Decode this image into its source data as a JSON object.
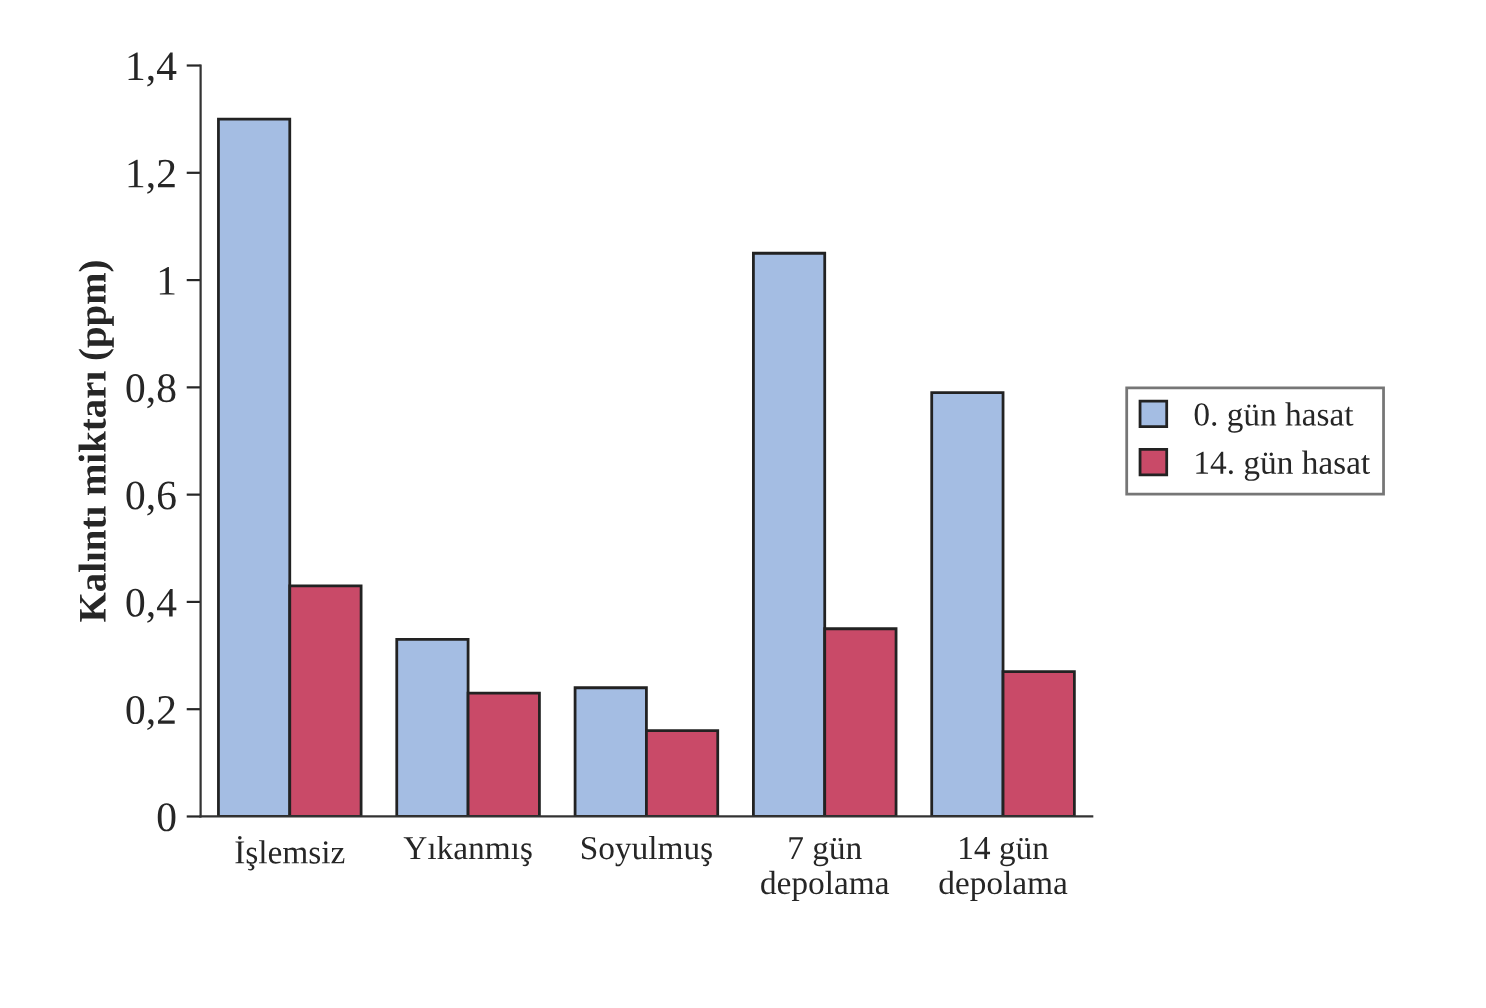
{
  "chart_data": {
    "type": "bar",
    "ylabel": "Kalıntı miktarı (ppm)",
    "categories": [
      "İşlemsiz",
      "Yıkanmış",
      "Soyulmuş",
      "7 gün\ndepolama",
      "14 gün\ndepolama"
    ],
    "series": [
      {
        "name": "0. gün hasat",
        "color": "#a4bde3",
        "values": [
          1.3,
          0.33,
          0.24,
          1.05,
          0.79
        ]
      },
      {
        "name": "14. gün hasat",
        "color": "#c94a68",
        "values": [
          0.43,
          0.23,
          0.16,
          0.35,
          0.27
        ]
      }
    ],
    "ylim": [
      0,
      1.4
    ],
    "yticks": [
      0,
      {
        "value": 0.2,
        "label": "0,2"
      },
      {
        "value": 0.4,
        "label": "0,4"
      },
      {
        "value": 0.6,
        "label": "0,6"
      },
      {
        "value": 0.8,
        "label": "0,8"
      },
      1,
      {
        "value": 1.2,
        "label": "1,2"
      },
      {
        "value": 1.4,
        "label": "1,4"
      }
    ],
    "grid": false,
    "legend": "right"
  }
}
